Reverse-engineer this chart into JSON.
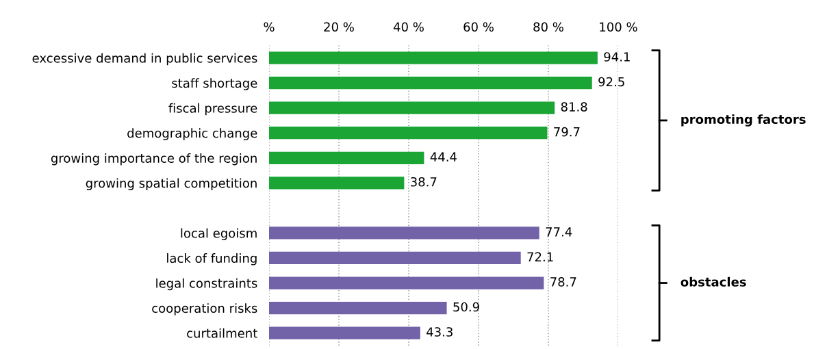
{
  "chart_data": {
    "type": "bar",
    "orientation": "horizontal",
    "categories": [
      "excessive demand in public services",
      "staff shortage",
      "fiscal pressure",
      "demographic change",
      "growing importance of the region",
      "growing spatial competition",
      null,
      "local egoism",
      "lack of funding",
      "legal constraints",
      "cooperation risks",
      "curtailment"
    ],
    "series": [
      {
        "name": "promoting factors",
        "color": "#1aa535",
        "values": [
          94.1,
          92.5,
          81.8,
          79.7,
          44.4,
          38.7,
          null,
          null,
          null,
          null,
          null,
          null
        ]
      },
      {
        "name": "obstacles",
        "color": "#7262a8",
        "values": [
          null,
          null,
          null,
          null,
          null,
          null,
          null,
          77.4,
          72.1,
          78.7,
          50.9,
          43.3
        ]
      }
    ],
    "xlim": [
      0,
      100
    ],
    "xticks": [
      {
        "value": 0,
        "label": "%"
      },
      {
        "value": 20,
        "label": "20 %"
      },
      {
        "value": 40,
        "label": "40 %"
      },
      {
        "value": 60,
        "label": "60 %"
      },
      {
        "value": 80,
        "label": "80 %"
      },
      {
        "value": 100,
        "label": "100 %"
      }
    ],
    "grid": "x",
    "legend": false,
    "data_labels": true
  }
}
